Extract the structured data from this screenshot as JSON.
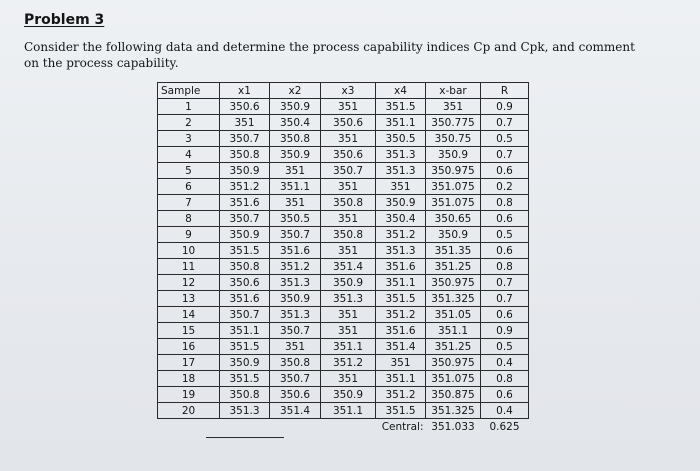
{
  "problem": {
    "heading": "Problem 3",
    "intro_line1": "Consider the following data and determine the process capability indices Cp and Cpk, and comment",
    "intro_line2": "on the process capability."
  },
  "table": {
    "headers": [
      "Sample",
      "x1",
      "x2",
      "x3",
      "x4",
      "x-bar",
      "R"
    ],
    "rows": [
      [
        "1",
        "350.6",
        "350.9",
        "351",
        "351.5",
        "351",
        "0.9"
      ],
      [
        "2",
        "351",
        "350.4",
        "350.6",
        "351.1",
        "350.775",
        "0.7"
      ],
      [
        "3",
        "350.7",
        "350.8",
        "351",
        "350.5",
        "350.75",
        "0.5"
      ],
      [
        "4",
        "350.8",
        "350.9",
        "350.6",
        "351.3",
        "350.9",
        "0.7"
      ],
      [
        "5",
        "350.9",
        "351",
        "350.7",
        "351.3",
        "350.975",
        "0.6"
      ],
      [
        "6",
        "351.2",
        "351.1",
        "351",
        "351",
        "351.075",
        "0.2"
      ],
      [
        "7",
        "351.6",
        "351",
        "350.8",
        "350.9",
        "351.075",
        "0.8"
      ],
      [
        "8",
        "350.7",
        "350.5",
        "351",
        "350.4",
        "350.65",
        "0.6"
      ],
      [
        "9",
        "350.9",
        "350.7",
        "350.8",
        "351.2",
        "350.9",
        "0.5"
      ],
      [
        "10",
        "351.5",
        "351.6",
        "351",
        "351.3",
        "351.35",
        "0.6"
      ],
      [
        "11",
        "350.8",
        "351.2",
        "351.4",
        "351.6",
        "351.25",
        "0.8"
      ],
      [
        "12",
        "350.6",
        "351.3",
        "350.9",
        "351.1",
        "350.975",
        "0.7"
      ],
      [
        "13",
        "351.6",
        "350.9",
        "351.3",
        "351.5",
        "351.325",
        "0.7"
      ],
      [
        "14",
        "350.7",
        "351.3",
        "351",
        "351.2",
        "351.05",
        "0.6"
      ],
      [
        "15",
        "351.1",
        "350.7",
        "351",
        "351.6",
        "351.1",
        "0.9"
      ],
      [
        "16",
        "351.5",
        "351",
        "351.1",
        "351.4",
        "351.25",
        "0.5"
      ],
      [
        "17",
        "350.9",
        "350.8",
        "351.2",
        "351",
        "350.975",
        "0.4"
      ],
      [
        "18",
        "351.5",
        "350.7",
        "351",
        "351.1",
        "351.075",
        "0.8"
      ],
      [
        "19",
        "350.8",
        "350.6",
        "350.9",
        "351.2",
        "350.875",
        "0.6"
      ],
      [
        "20",
        "351.3",
        "351.4",
        "351.1",
        "351.5",
        "351.325",
        "0.4"
      ]
    ],
    "central_label": "Central:",
    "central_xbar": "351.033",
    "central_r": "0.625"
  }
}
